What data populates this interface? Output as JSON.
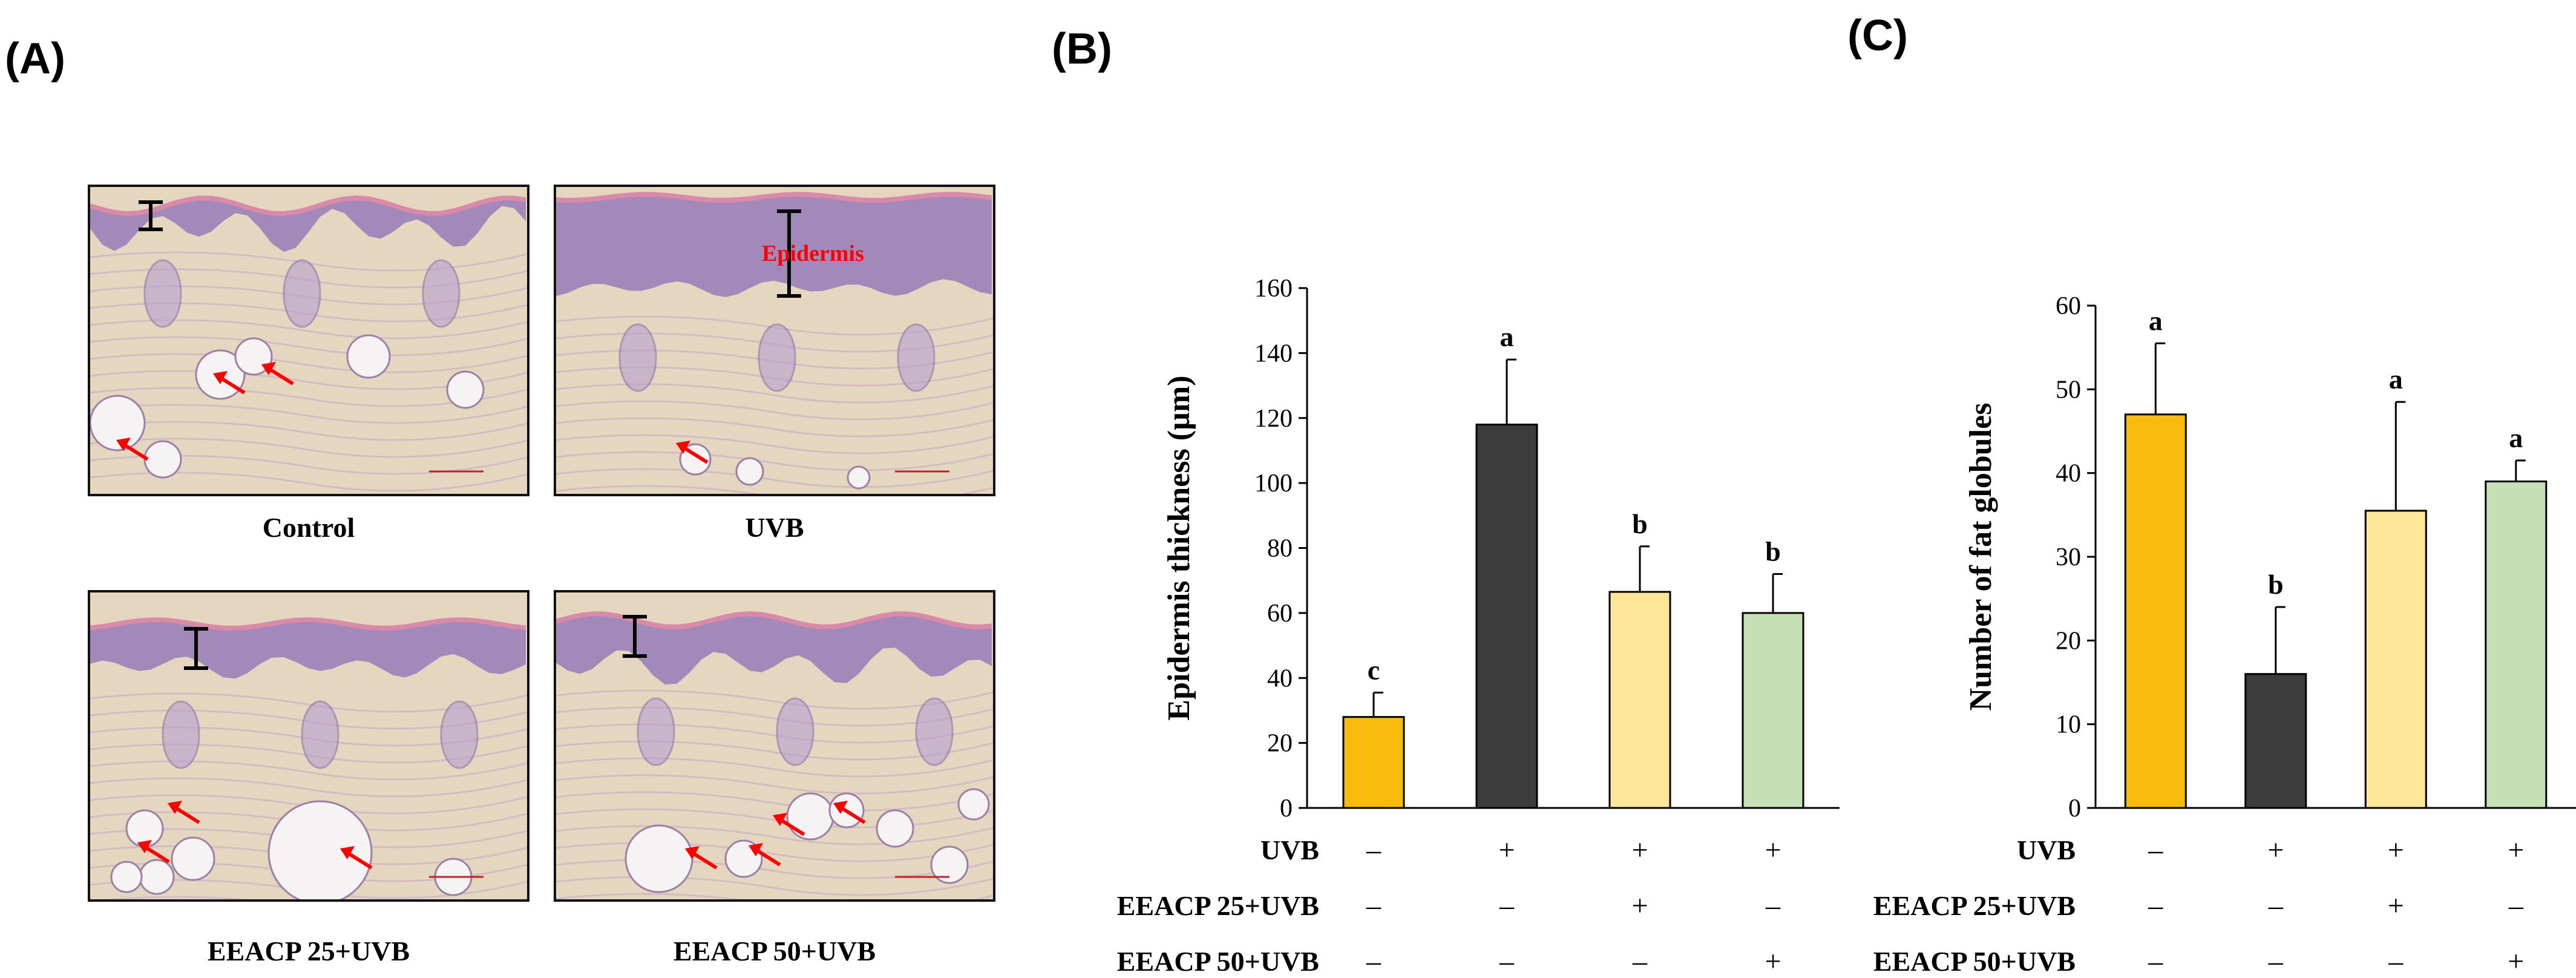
{
  "panels": {
    "a": "(A)",
    "b": "(B)",
    "c": "(C)"
  },
  "histology": {
    "images": [
      {
        "caption": "Control",
        "annotation": ""
      },
      {
        "caption": "UVB",
        "annotation": "Epidermis"
      },
      {
        "caption": "EEACP 25+UVB",
        "annotation": ""
      },
      {
        "caption": "EEACP 50+UVB",
        "annotation": ""
      }
    ],
    "colors": {
      "tissue": "#e9d8e3",
      "dermis": "#e5d6c0",
      "epidermis": "#8c6fb8",
      "stratum": "#d98aa8",
      "arrow": "#ff0000",
      "fat": "#f6f3f5",
      "bar": "#000000"
    }
  },
  "treatment_rows": {
    "labels": [
      "UVB",
      "EEACP 25+UVB",
      "EEACP 50+UVB"
    ],
    "signs": [
      [
        "–",
        "+",
        "+",
        "+"
      ],
      [
        "–",
        "–",
        "+",
        "–"
      ],
      [
        "–",
        "–",
        "–",
        "+"
      ]
    ]
  },
  "chart_data": [
    {
      "type": "bar",
      "panel": "(B)",
      "categories": [
        "Control",
        "UVB",
        "EEACP 25+UVB",
        "EEACP 50+UVB"
      ],
      "values": [
        28,
        118,
        66.5,
        60
      ],
      "errors": [
        7.5,
        20,
        14,
        12
      ],
      "sig_labels": [
        "c",
        "a",
        "b",
        "b"
      ],
      "colors": [
        "#f8bb0c",
        "#3c3c3c",
        "#ffe699",
        "#c5e0b4"
      ],
      "ylabel": "Epidermis thickness (µm)",
      "ylim": [
        0,
        160
      ],
      "yticks": [
        "0",
        "20",
        "40",
        "60",
        "80",
        "100",
        "120",
        "140",
        "160"
      ]
    },
    {
      "type": "bar",
      "panel": "(C)",
      "categories": [
        "Control",
        "UVB",
        "EEACP 25+UVB",
        "EEACP 50+UVB"
      ],
      "values": [
        47,
        16,
        35.5,
        39
      ],
      "errors": [
        8.5,
        8,
        13,
        2.5
      ],
      "sig_labels": [
        "a",
        "b",
        "a",
        "a"
      ],
      "colors": [
        "#f8bb0c",
        "#3c3c3c",
        "#ffe699",
        "#c5e0b4"
      ],
      "ylabel": "Number of fat globules",
      "ylim": [
        0,
        60
      ],
      "yticks": [
        "0",
        "10",
        "20",
        "30",
        "40",
        "50",
        "60"
      ]
    }
  ]
}
